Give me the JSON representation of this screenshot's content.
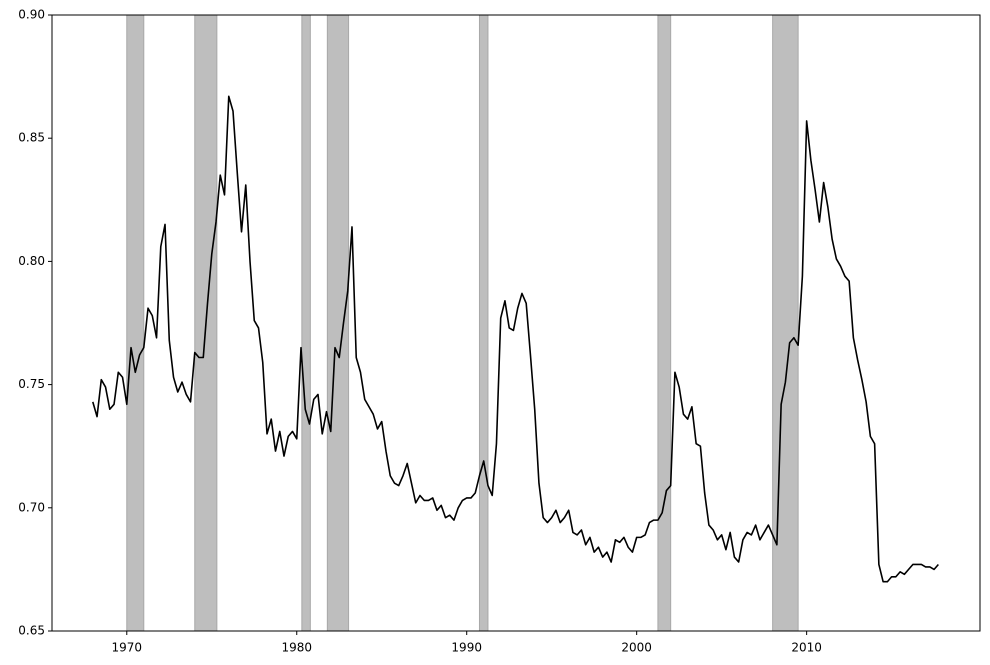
{
  "chart_data": {
    "type": "line",
    "color": "#000000",
    "shade_color": "#bebebe",
    "x": [
      1968,
      1968.25,
      1968.5,
      1968.75,
      1969,
      1969.25,
      1969.5,
      1969.75,
      1970,
      1970.25,
      1970.5,
      1970.75,
      1971,
      1971.25,
      1971.5,
      1971.75,
      1972,
      1972.25,
      1972.5,
      1972.75,
      1973,
      1973.25,
      1973.5,
      1973.75,
      1974,
      1974.25,
      1974.5,
      1974.75,
      1975,
      1975.25,
      1975.5,
      1975.75,
      1976,
      1976.25,
      1976.5,
      1976.75,
      1977,
      1977.25,
      1977.5,
      1977.75,
      1978,
      1978.25,
      1978.5,
      1978.75,
      1979,
      1979.25,
      1979.5,
      1979.75,
      1980,
      1980.25,
      1980.5,
      1980.75,
      1981,
      1981.25,
      1981.5,
      1981.75,
      1982,
      1982.25,
      1982.5,
      1982.75,
      1983,
      1983.25,
      1983.5,
      1983.75,
      1984,
      1984.25,
      1984.5,
      1984.75,
      1985,
      1985.25,
      1985.5,
      1985.75,
      1986,
      1986.25,
      1986.5,
      1986.75,
      1987,
      1987.25,
      1987.5,
      1987.75,
      1988,
      1988.25,
      1988.5,
      1988.75,
      1989,
      1989.25,
      1989.5,
      1989.75,
      1990,
      1990.25,
      1990.5,
      1990.75,
      1991,
      1991.25,
      1991.5,
      1991.75,
      1992,
      1992.25,
      1992.5,
      1992.75,
      1993,
      1993.25,
      1993.5,
      1993.75,
      1994,
      1994.25,
      1994.5,
      1994.75,
      1995,
      1995.25,
      1995.5,
      1995.75,
      1996,
      1996.25,
      1996.5,
      1996.75,
      1997,
      1997.25,
      1997.5,
      1997.75,
      1998,
      1998.25,
      1998.5,
      1998.75,
      1999,
      1999.25,
      1999.5,
      1999.75,
      2000,
      2000.25,
      2000.5,
      2000.75,
      2001,
      2001.25,
      2001.5,
      2001.75,
      2002,
      2002.25,
      2002.5,
      2002.75,
      2003,
      2003.25,
      2003.5,
      2003.75,
      2004,
      2004.25,
      2004.5,
      2004.75,
      2005,
      2005.25,
      2005.5,
      2005.75,
      2006,
      2006.25,
      2006.5,
      2006.75,
      2007,
      2007.25,
      2007.5,
      2007.75,
      2008,
      2008.25,
      2008.5,
      2008.75,
      2009,
      2009.25,
      2009.5,
      2009.75,
      2010,
      2010.25,
      2010.5,
      2010.75,
      2011,
      2011.25,
      2011.5,
      2011.75,
      2012,
      2012.25,
      2012.5,
      2012.75,
      2013,
      2013.25,
      2013.5,
      2013.75,
      2014,
      2014.25,
      2014.5,
      2014.75,
      2015,
      2015.25,
      2015.5,
      2015.75,
      2016,
      2016.25,
      2016.5,
      2016.75,
      2017,
      2017.25,
      2017.5,
      2017.75
    ],
    "values": [
      0.743,
      0.737,
      0.752,
      0.749,
      0.74,
      0.742,
      0.755,
      0.753,
      0.742,
      0.765,
      0.755,
      0.762,
      0.765,
      0.781,
      0.778,
      0.769,
      0.806,
      0.815,
      0.768,
      0.753,
      0.747,
      0.751,
      0.746,
      0.743,
      0.763,
      0.761,
      0.761,
      0.783,
      0.803,
      0.816,
      0.835,
      0.827,
      0.867,
      0.861,
      0.836,
      0.812,
      0.831,
      0.8,
      0.776,
      0.773,
      0.759,
      0.73,
      0.736,
      0.723,
      0.731,
      0.721,
      0.729,
      0.731,
      0.728,
      0.765,
      0.74,
      0.734,
      0.744,
      0.746,
      0.73,
      0.739,
      0.731,
      0.765,
      0.761,
      0.775,
      0.788,
      0.814,
      0.761,
      0.755,
      0.744,
      0.741,
      0.738,
      0.732,
      0.735,
      0.723,
      0.713,
      0.71,
      0.709,
      0.713,
      0.718,
      0.71,
      0.702,
      0.705,
      0.703,
      0.703,
      0.704,
      0.699,
      0.701,
      0.696,
      0.697,
      0.695,
      0.7,
      0.703,
      0.704,
      0.704,
      0.706,
      0.713,
      0.719,
      0.709,
      0.705,
      0.726,
      0.777,
      0.784,
      0.773,
      0.772,
      0.781,
      0.787,
      0.783,
      0.762,
      0.74,
      0.71,
      0.696,
      0.694,
      0.696,
      0.699,
      0.694,
      0.696,
      0.699,
      0.69,
      0.689,
      0.691,
      0.685,
      0.688,
      0.682,
      0.684,
      0.68,
      0.682,
      0.678,
      0.687,
      0.686,
      0.688,
      0.684,
      0.682,
      0.688,
      0.688,
      0.689,
      0.694,
      0.695,
      0.695,
      0.698,
      0.707,
      0.709,
      0.755,
      0.749,
      0.738,
      0.736,
      0.741,
      0.726,
      0.725,
      0.706,
      0.693,
      0.691,
      0.687,
      0.689,
      0.683,
      0.69,
      0.68,
      0.678,
      0.687,
      0.69,
      0.689,
      0.693,
      0.687,
      0.69,
      0.693,
      0.689,
      0.685,
      0.742,
      0.751,
      0.767,
      0.769,
      0.766,
      0.794,
      0.857,
      0.841,
      0.829,
      0.816,
      0.832,
      0.822,
      0.809,
      0.801,
      0.798,
      0.794,
      0.792,
      0.769,
      0.76,
      0.752,
      0.743,
      0.729,
      0.726,
      0.677,
      0.67,
      0.67,
      0.672,
      0.672,
      0.674,
      0.673,
      0.675,
      0.677,
      0.677,
      0.677,
      0.676,
      0.676,
      0.675,
      0.677
    ],
    "shaded_spans": [
      [
        1970.0,
        1971.0
      ],
      [
        1974.0,
        1975.3
      ],
      [
        1980.3,
        1980.8
      ],
      [
        1981.8,
        1983.05
      ],
      [
        1990.75,
        1991.25
      ],
      [
        2001.25,
        2002.0
      ],
      [
        2008.0,
        2009.5
      ]
    ],
    "xlim": [
      1965.6,
      2020.2
    ],
    "xticks": [
      1970,
      1980,
      1990,
      2000,
      2010
    ],
    "ylim": [
      0.65,
      0.9
    ],
    "yticks": [
      0.65,
      {
        "value": 0.7,
        "label": "0.70"
      },
      0.75,
      {
        "value": 0.8,
        "label": "0.80"
      },
      0.85,
      {
        "value": 0.9,
        "label": "0.90"
      }
    ]
  }
}
